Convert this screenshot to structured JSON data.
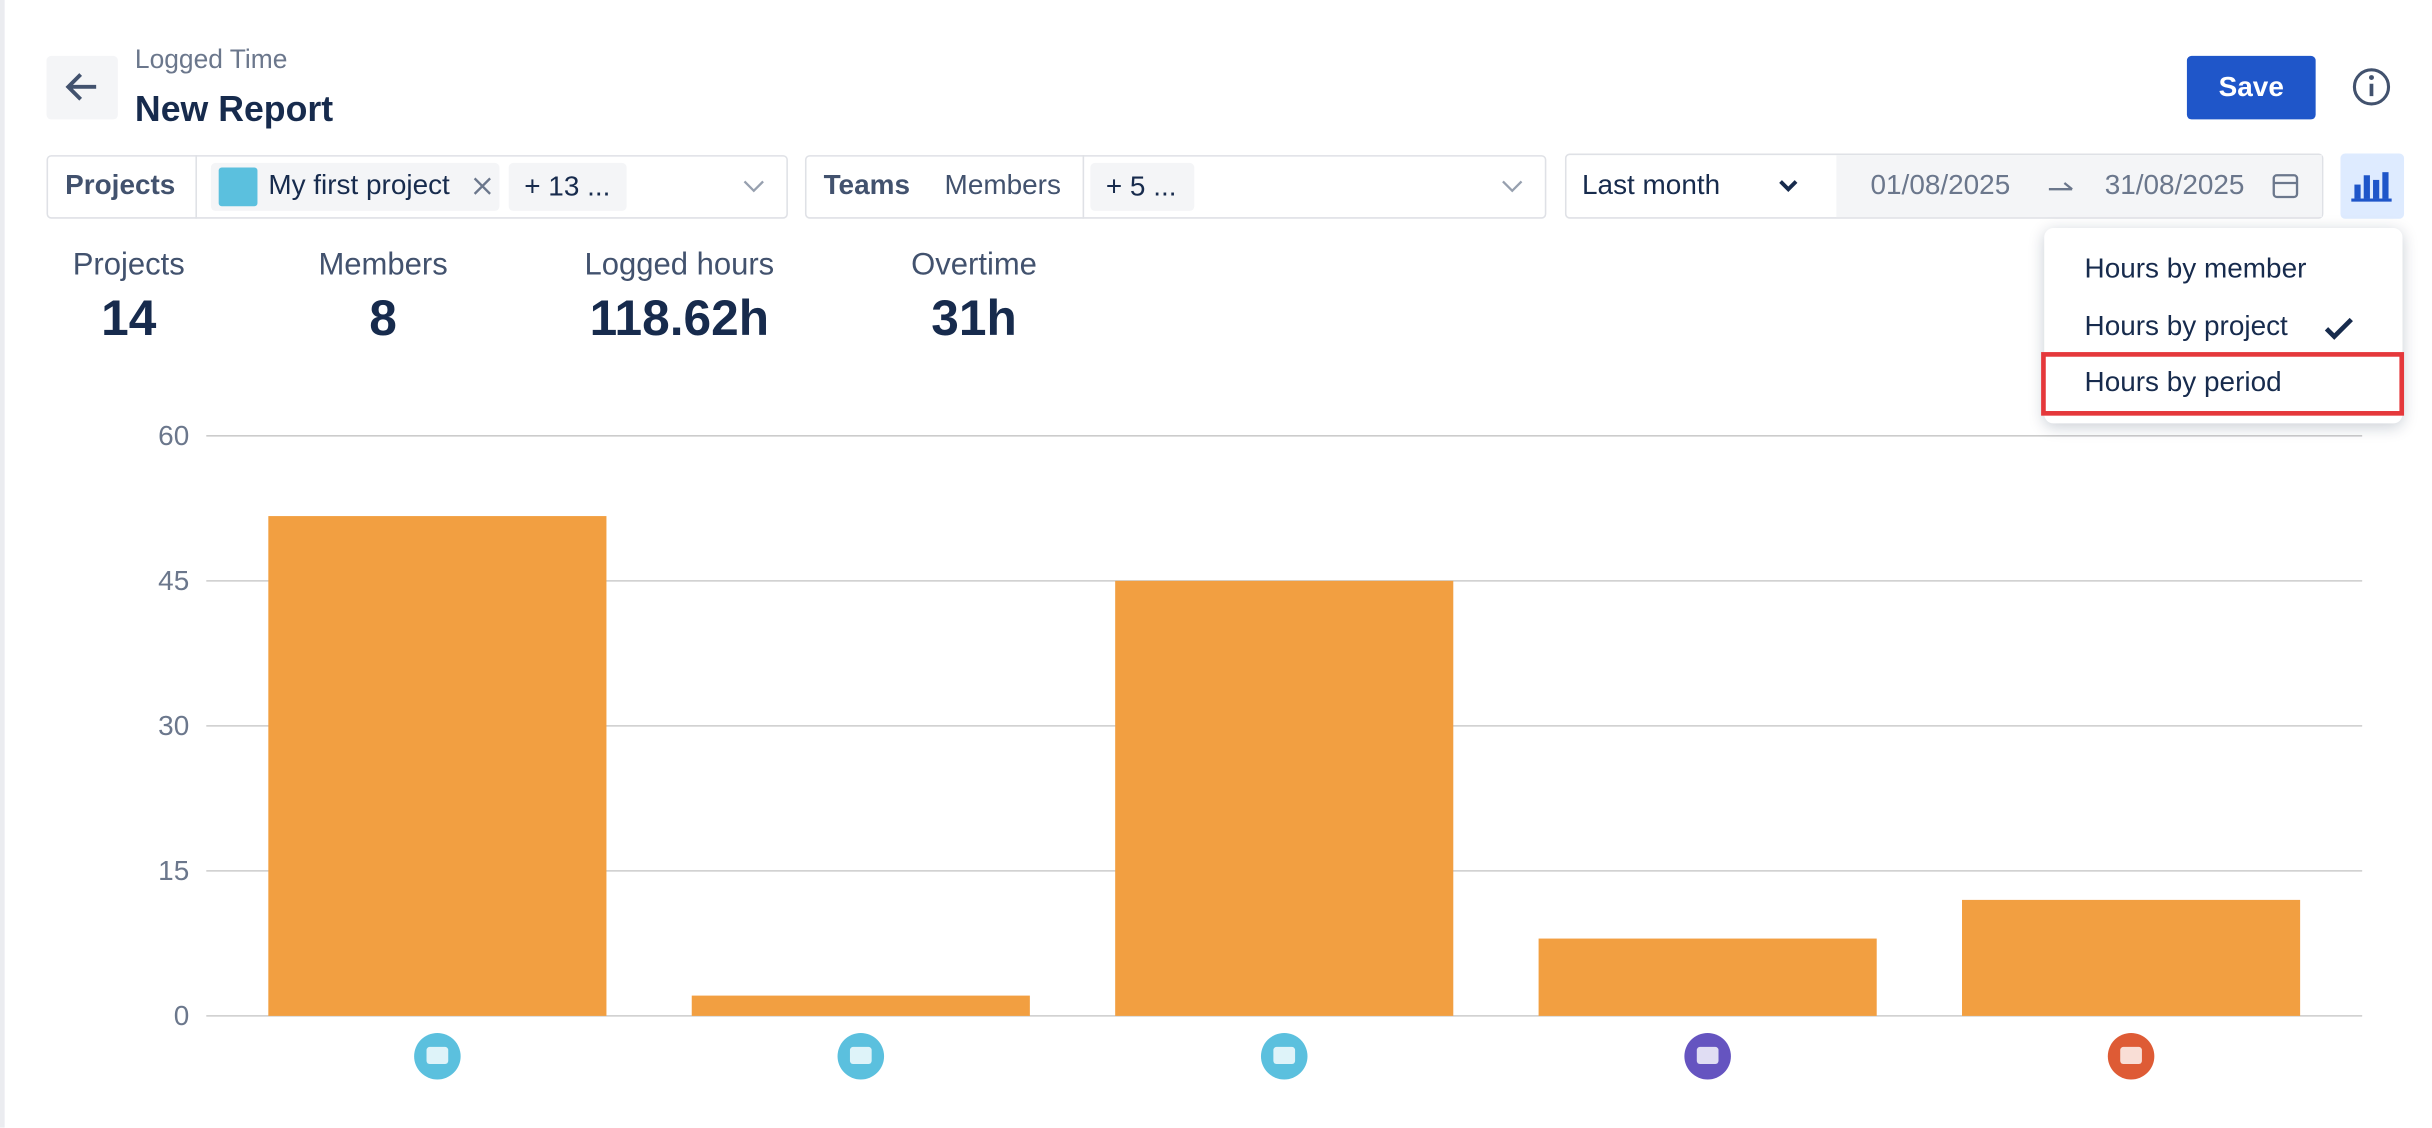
{
  "header": {
    "subtitle": "Logged Time",
    "title": "New Report",
    "save": "Save"
  },
  "filters": {
    "projects_label": "Projects",
    "project_chip": "My first project",
    "project_more": "+ 13 ...",
    "teams_label": "Teams",
    "members_label": "Members",
    "members_more": "+ 5 ...",
    "period": "Last month",
    "date_from": "01/08/2025",
    "date_to": "31/08/2025"
  },
  "stats": [
    {
      "label": "Projects",
      "value": "14"
    },
    {
      "label": "Members",
      "value": "8"
    },
    {
      "label": "Logged hours",
      "value": "118.62h"
    },
    {
      "label": "Overtime",
      "value": "31h"
    }
  ],
  "chart_menu": {
    "items": [
      "Hours by member",
      "Hours by project",
      "Hours by period"
    ],
    "selected": 1
  },
  "chart_data": {
    "type": "bar",
    "categories": [
      null,
      null,
      null,
      null,
      null
    ],
    "values": [
      51.7,
      2.1,
      45,
      8,
      12
    ],
    "color": "#f29f41",
    "ylim": [
      0,
      60
    ],
    "yticks": [
      0,
      15,
      30,
      45,
      60
    ],
    "grid": true
  }
}
